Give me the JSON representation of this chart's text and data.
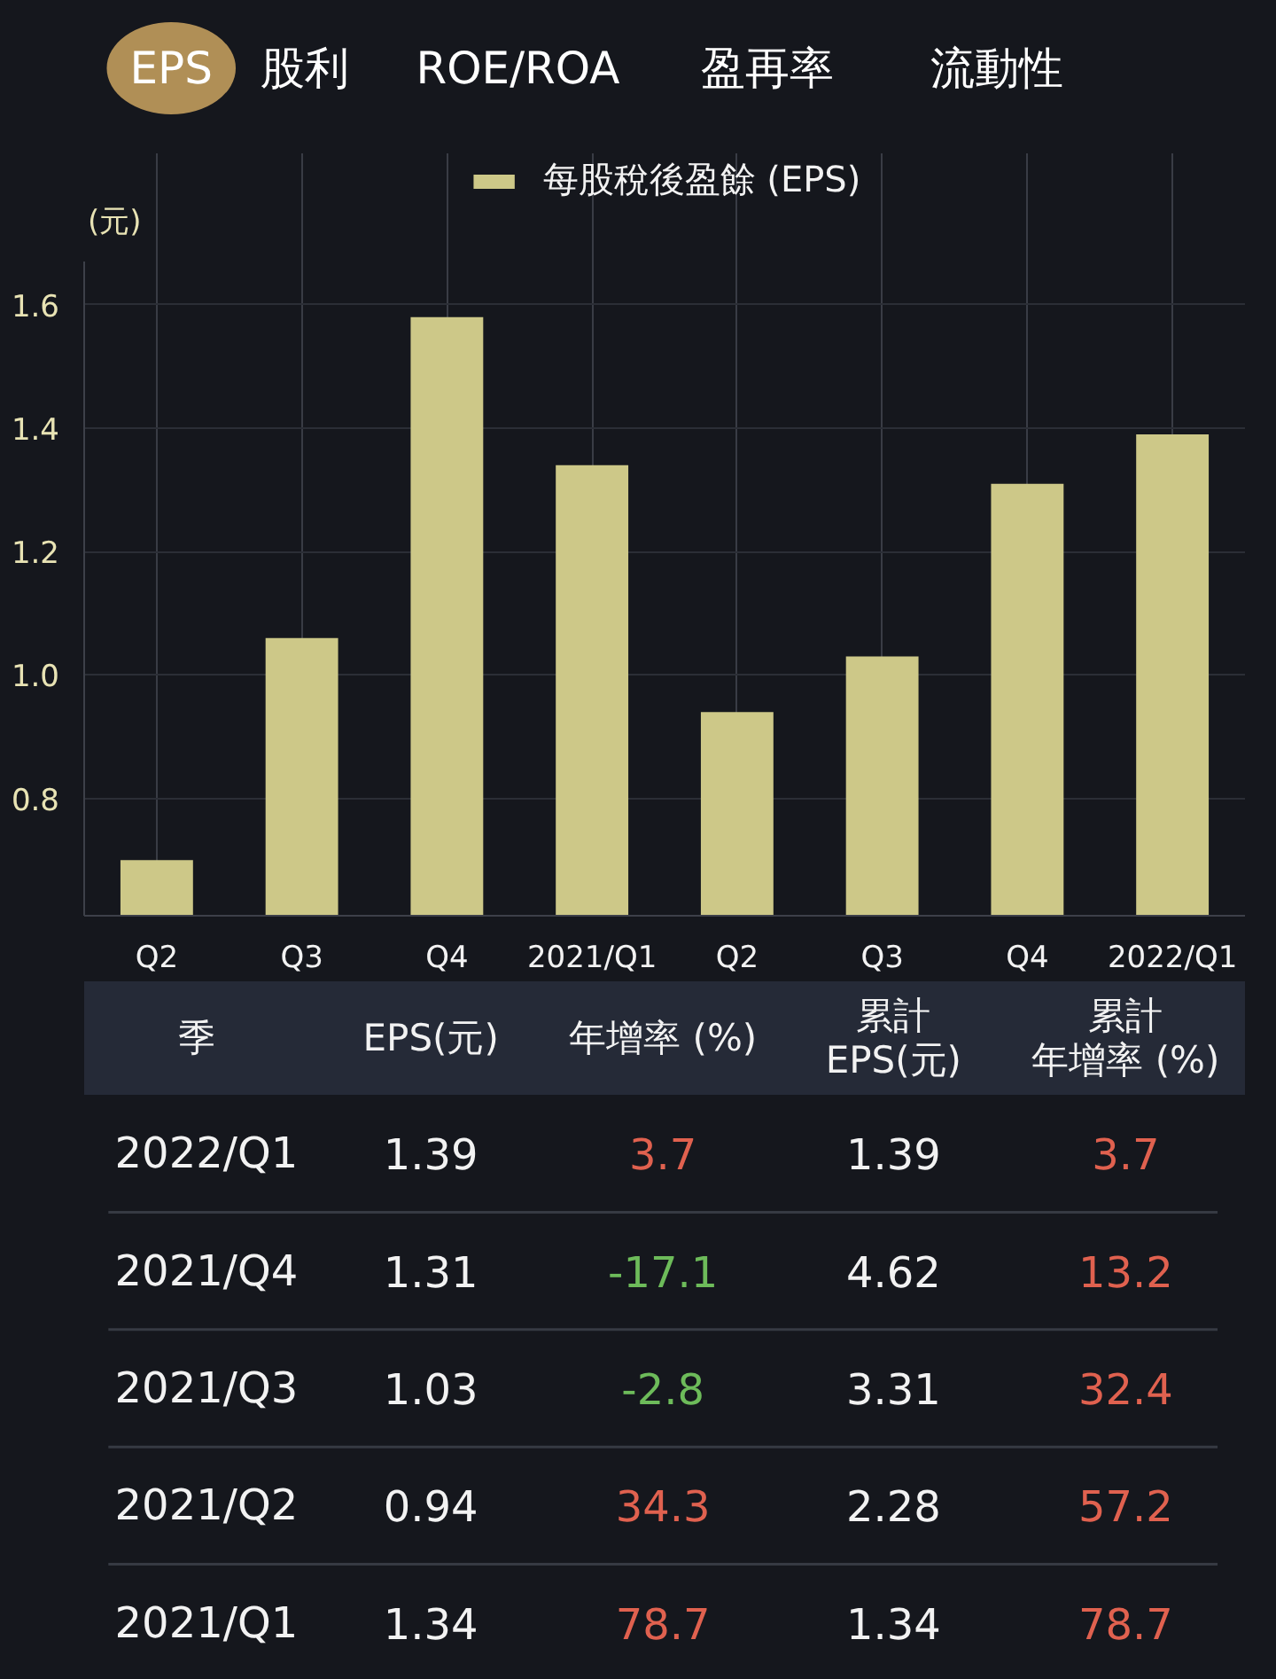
{
  "chart_data": [
    {
      "type": "other",
      "categories": [
        "EPS",
        "股利",
        "ROE/ROA",
        "盈再率",
        "流動性"
      ],
      "colors": [
        "#b08f56",
        null,
        null,
        null,
        null
      ]
    },
    {
      "type": "bar",
      "categories": [
        "Q2",
        "Q3",
        "Q4",
        "2021/Q1",
        "Q2",
        "Q3",
        "Q4",
        "2022/Q1"
      ],
      "series": [
        {
          "name": "每股稅後盈餘 (EPS)",
          "color": "#cdc888",
          "values": [
            0.7,
            1.06,
            1.58,
            1.34,
            0.94,
            1.03,
            1.31,
            1.39
          ]
        }
      ],
      "ylabel": "(元)",
      "ylim": [
        0.61,
        1.67
      ],
      "yticks": [
        0.8,
        {
          "value": 1,
          "label": "1.0"
        },
        1.2,
        1.4,
        1.6
      ],
      "grid": true,
      "legend": "top"
    },
    {
      "type": "other",
      "categories": [
        "季",
        "EPS(元)",
        "年增率 (%)",
        "累計EPS(元)",
        "累計年增率 (%)"
      ],
      "y_categories": [
        "2022/Q1",
        "2021/Q4",
        "2021/Q3",
        "2021/Q2",
        "2021/Q1"
      ],
      "cell_labels": [
        [
          "1.39",
          "3.7",
          "1.39",
          "3.7"
        ],
        [
          "1.31",
          "-17.1",
          "4.62",
          "13.2"
        ],
        [
          "1.03",
          "-2.8",
          "3.31",
          "32.4"
        ],
        [
          "0.94",
          "34.3",
          "2.28",
          "57.2"
        ],
        [
          "1.34",
          "78.7",
          "1.34",
          "78.7"
        ]
      ],
      "colors": [
        [
          "#f2f2f2",
          "#e0614f",
          "#f2f2f2",
          "#e0614f"
        ],
        [
          "#f2f2f2",
          "#6dbb5a",
          "#f2f2f2",
          "#e0614f"
        ],
        [
          "#f2f2f2",
          "#6dbb5a",
          "#f2f2f2",
          "#e0614f"
        ],
        [
          "#f2f2f2",
          "#e0614f",
          "#f2f2f2",
          "#e0614f"
        ],
        [
          "#f2f2f2",
          "#e0614f",
          "#f2f2f2",
          "#e0614f"
        ]
      ]
    }
  ]
}
